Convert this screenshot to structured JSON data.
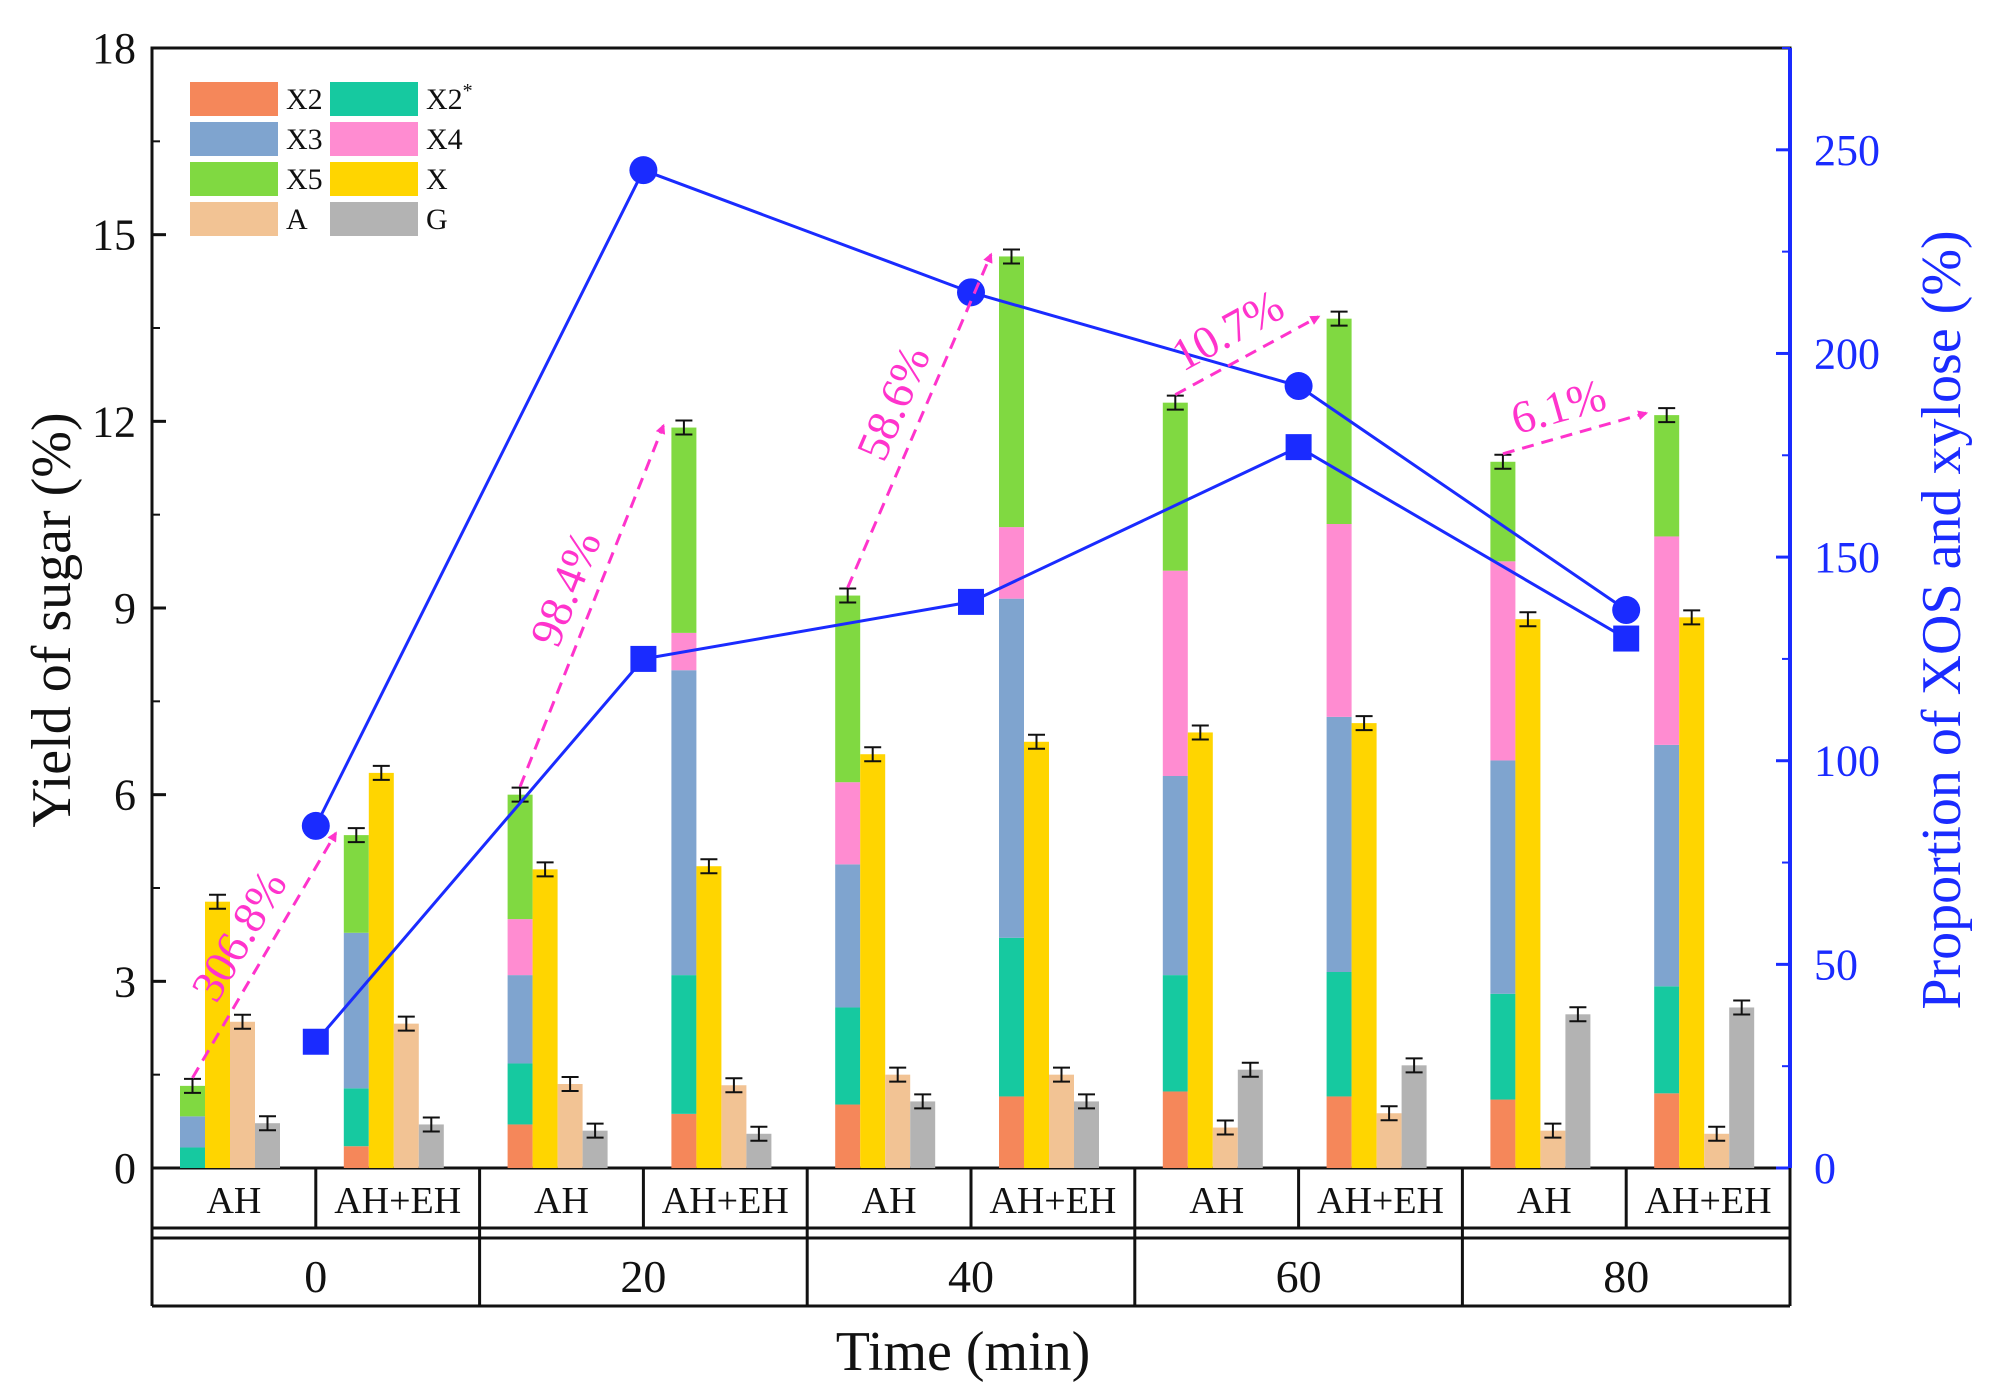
{
  "chart_data": {
    "type": "bar",
    "title": "",
    "xlabel": "Time (min)",
    "ylabel": "Yield of sugar (%)",
    "y2label": "Proportion of XOS and xylose (%)",
    "ylim": [
      0,
      18
    ],
    "y2lim": [
      0,
      275
    ],
    "yticks": [
      "0",
      "3",
      "6",
      "9",
      "12",
      "15",
      "18"
    ],
    "y2ticks": [
      "0",
      "50",
      "100",
      "150",
      "200",
      "250"
    ],
    "groups": [
      "0",
      "20",
      "40",
      "60",
      "80"
    ],
    "categories": [
      "AH",
      "AH+EH"
    ],
    "legend": [
      {
        "key": "X2",
        "label": "X2",
        "color": "#f5875a"
      },
      {
        "key": "X2s",
        "label": "X2",
        "sup": "*",
        "color": "#16c9a0"
      },
      {
        "key": "X3",
        "label": "X3",
        "color": "#7fa4cf"
      },
      {
        "key": "X4",
        "label": "X4",
        "color": "#ff8cd1"
      },
      {
        "key": "X5",
        "label": "X5",
        "color": "#80d941"
      },
      {
        "key": "X",
        "label": "X",
        "color": "#ffd500"
      },
      {
        "key": "A",
        "label": "A",
        "color": "#f2c394"
      },
      {
        "key": "G",
        "label": "G",
        "color": "#b3b3b3"
      }
    ],
    "stacked_xos": [
      {
        "group": "0",
        "condition": "AH",
        "X2": 0.0,
        "X2s": 0.33,
        "X3": 0.5,
        "X4": 0.0,
        "X5": 0.49,
        "total": 1.32
      },
      {
        "group": "0",
        "condition": "AH+EH",
        "X2": 0.35,
        "X2s": 0.93,
        "X3": 2.5,
        "X4": 0.0,
        "X5": 1.57,
        "total": 5.35
      },
      {
        "group": "20",
        "condition": "AH",
        "X2": 0.7,
        "X2s": 0.98,
        "X3": 1.42,
        "X4": 0.9,
        "X5": 2.0,
        "total": 6.0
      },
      {
        "group": "20",
        "condition": "AH+EH",
        "X2": 0.87,
        "X2s": 2.23,
        "X3": 4.9,
        "X4": 0.6,
        "X5": 3.3,
        "total": 11.9
      },
      {
        "group": "40",
        "condition": "AH",
        "X2": 1.02,
        "X2s": 1.56,
        "X3": 2.3,
        "X4": 1.32,
        "X5": 3.0,
        "total": 9.2
      },
      {
        "group": "40",
        "condition": "AH+EH",
        "X2": 1.15,
        "X2s": 2.55,
        "X3": 5.45,
        "X4": 1.15,
        "X5": 4.35,
        "total": 14.65
      },
      {
        "group": "60",
        "condition": "AH",
        "X2": 1.23,
        "X2s": 1.87,
        "X3": 3.2,
        "X4": 3.3,
        "X5": 2.7,
        "total": 12.3
      },
      {
        "group": "60",
        "condition": "AH+EH",
        "X2": 1.15,
        "X2s": 2.0,
        "X3": 4.1,
        "X4": 3.1,
        "X5": 3.3,
        "total": 13.65
      },
      {
        "group": "80",
        "condition": "AH",
        "X2": 1.1,
        "X2s": 1.7,
        "X3": 3.75,
        "X4": 3.2,
        "X5": 1.6,
        "total": 11.35
      },
      {
        "group": "80",
        "condition": "AH+EH",
        "X2": 1.2,
        "X2s": 1.72,
        "X3": 3.88,
        "X4": 3.35,
        "X5": 1.95,
        "total": 12.1
      }
    ],
    "single_bars": [
      {
        "group": "0",
        "condition": "AH",
        "X": 4.28,
        "A": 2.35,
        "G": 0.72
      },
      {
        "group": "0",
        "condition": "AH+EH",
        "X": 6.35,
        "A": 2.32,
        "G": 0.7
      },
      {
        "group": "20",
        "condition": "AH",
        "X": 4.8,
        "A": 1.35,
        "G": 0.6
      },
      {
        "group": "20",
        "condition": "AH+EH",
        "X": 4.85,
        "A": 1.33,
        "G": 0.55
      },
      {
        "group": "40",
        "condition": "AH",
        "X": 6.65,
        "A": 1.5,
        "G": 1.07
      },
      {
        "group": "40",
        "condition": "AH+EH",
        "X": 6.85,
        "A": 1.5,
        "G": 1.07
      },
      {
        "group": "60",
        "condition": "AH",
        "X": 7.0,
        "A": 0.65,
        "G": 1.58
      },
      {
        "group": "60",
        "condition": "AH+EH",
        "X": 7.15,
        "A": 0.88,
        "G": 1.65
      },
      {
        "group": "80",
        "condition": "AH",
        "X": 8.82,
        "A": 0.6,
        "G": 2.47
      },
      {
        "group": "80",
        "condition": "AH+EH",
        "X": 8.85,
        "A": 0.55,
        "G": 2.58
      }
    ],
    "proportion_lines": [
      {
        "name": "circle",
        "marker": "circle",
        "color": "#1a2bff",
        "points": [
          {
            "group": "0",
            "value": 84
          },
          {
            "group": "20",
            "value": 245
          },
          {
            "group": "40",
            "value": 215
          },
          {
            "group": "60",
            "value": 192
          },
          {
            "group": "80",
            "value": 137
          }
        ]
      },
      {
        "name": "square",
        "marker": "square",
        "color": "#1a2bff",
        "points": [
          {
            "group": "0",
            "value": 31
          },
          {
            "group": "20",
            "value": 125
          },
          {
            "group": "40",
            "value": 139
          },
          {
            "group": "60",
            "value": 177
          },
          {
            "group": "80",
            "value": 130
          }
        ]
      }
    ],
    "annotations": [
      {
        "text": "306.8%",
        "group": "0",
        "from": 1.32,
        "to": 5.35
      },
      {
        "text": "98.4%",
        "group": "20",
        "from": 6.0,
        "to": 11.9
      },
      {
        "text": "58.6%",
        "group": "40",
        "from": 9.2,
        "to": 14.65
      },
      {
        "text": "10.7%",
        "group": "60",
        "from": 12.3,
        "to": 13.65
      },
      {
        "text": "6.1%",
        "group": "80",
        "from": 11.35,
        "to": 12.1
      }
    ],
    "error_bars": "small caps on each bar top"
  }
}
